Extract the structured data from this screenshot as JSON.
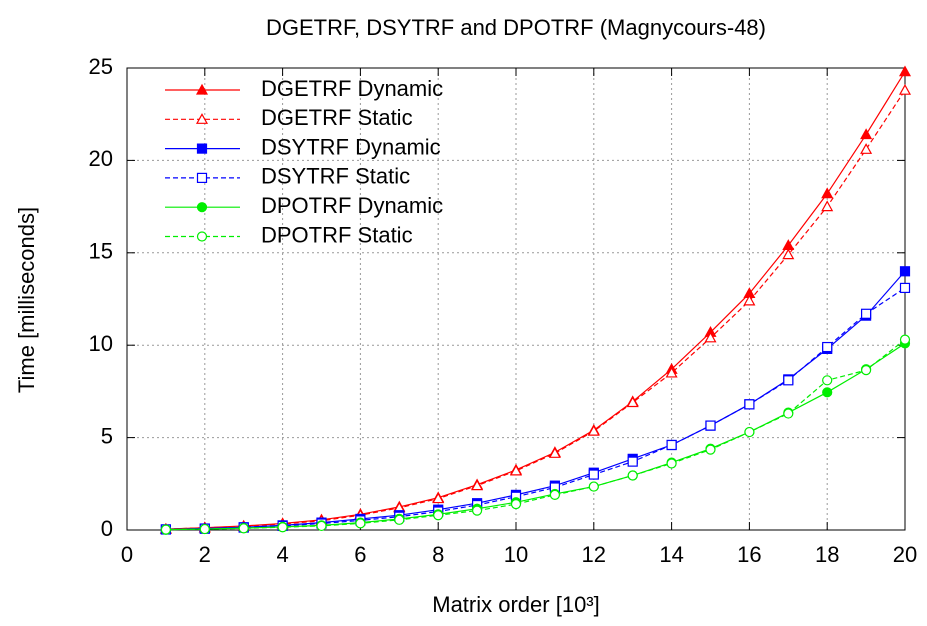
{
  "chart_data": {
    "type": "line",
    "title": "DGETRF, DSYTRF and DPOTRF (Magnycours-48)",
    "x_label": "Matrix order [10³]",
    "y_label": "Time [milliseconds]",
    "x": [
      1,
      2,
      3,
      4,
      5,
      6,
      7,
      8,
      9,
      10,
      11,
      12,
      13,
      14,
      15,
      16,
      17,
      18,
      19,
      20
    ],
    "xlim": [
      0,
      20
    ],
    "xticks": [
      0,
      2,
      4,
      6,
      8,
      10,
      12,
      14,
      16,
      18,
      20
    ],
    "ylim": [
      0,
      25
    ],
    "yticks": [
      0,
      5,
      10,
      15,
      20,
      25
    ],
    "grid": true,
    "legend": "top-left",
    "series": [
      {
        "name": "DGETRF Dynamic",
        "color": "#ff0000",
        "marker": "triangle",
        "filled": true,
        "dashed": false,
        "values": [
          0.05,
          0.12,
          0.22,
          0.35,
          0.55,
          0.85,
          1.25,
          1.75,
          2.45,
          3.25,
          4.2,
          5.4,
          6.95,
          8.7,
          10.7,
          12.8,
          15.4,
          18.2,
          21.4,
          24.8
        ]
      },
      {
        "name": "DGETRF Static",
        "color": "#ff0000",
        "marker": "triangle",
        "filled": false,
        "dashed": true,
        "values": [
          0.05,
          0.12,
          0.2,
          0.32,
          0.5,
          0.8,
          1.2,
          1.7,
          2.4,
          3.2,
          4.15,
          5.35,
          6.9,
          8.5,
          10.4,
          12.4,
          14.9,
          17.5,
          20.6,
          23.8
        ]
      },
      {
        "name": "DSYTRF Dynamic",
        "color": "#0000ff",
        "marker": "square",
        "filled": true,
        "dashed": false,
        "values": [
          0.03,
          0.08,
          0.15,
          0.25,
          0.4,
          0.6,
          0.8,
          1.1,
          1.45,
          1.9,
          2.4,
          3.1,
          3.85,
          4.6,
          5.65,
          6.8,
          8.15,
          9.8,
          11.6,
          14.0
        ]
      },
      {
        "name": "DSYTRF Static",
        "color": "#0000ff",
        "marker": "square",
        "filled": false,
        "dashed": true,
        "values": [
          0.03,
          0.07,
          0.13,
          0.22,
          0.35,
          0.52,
          0.72,
          1.0,
          1.35,
          1.8,
          2.3,
          3.0,
          3.7,
          4.6,
          5.65,
          6.8,
          8.1,
          9.9,
          11.7,
          13.1
        ]
      },
      {
        "name": "DPOTRF Dynamic",
        "color": "#00ee00",
        "marker": "circle",
        "filled": true,
        "dashed": false,
        "values": [
          0.02,
          0.05,
          0.1,
          0.17,
          0.25,
          0.4,
          0.6,
          0.85,
          1.15,
          1.5,
          1.95,
          2.35,
          2.95,
          3.65,
          4.4,
          5.3,
          6.35,
          7.45,
          8.7,
          10.1
        ]
      },
      {
        "name": "DPOTRF Static",
        "color": "#00ee00",
        "marker": "circle",
        "filled": false,
        "dashed": true,
        "values": [
          0.02,
          0.05,
          0.09,
          0.15,
          0.22,
          0.36,
          0.55,
          0.8,
          1.05,
          1.4,
          1.9,
          2.35,
          2.95,
          3.6,
          4.35,
          5.3,
          6.3,
          8.1,
          8.65,
          10.3
        ]
      }
    ]
  }
}
